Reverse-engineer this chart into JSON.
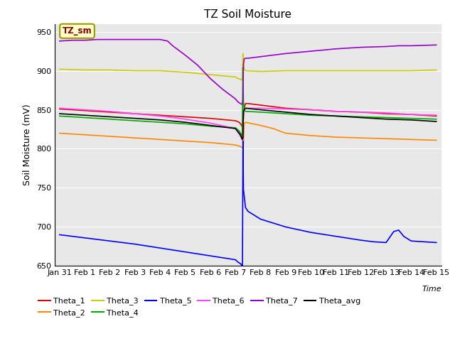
{
  "title": "TZ Soil Moisture",
  "xlabel": "Time",
  "ylabel": "Soil Moisture (mV)",
  "ylim": [
    650,
    960
  ],
  "yticks": [
    650,
    700,
    750,
    800,
    850,
    900,
    950
  ],
  "xlim": [
    -0.2,
    15.2
  ],
  "xtick_labels": [
    "Jan 31",
    "Feb 1",
    "Feb 2",
    "Feb 3",
    "Feb 4",
    "Feb 5",
    "Feb 6",
    "Feb 7",
    "Feb 8",
    "Feb 9",
    "Feb 10",
    "Feb 11",
    "Feb 12",
    "Feb 13",
    "Feb 14",
    "Feb 15"
  ],
  "background_color": "#e8e8e8",
  "label_box_color": "#ffffcc",
  "label_box_text": "TZ_sm",
  "label_box_text_color": "#880000",
  "series": {
    "Theta_1": {
      "color": "#dd0000",
      "points": [
        [
          0,
          851
        ],
        [
          1,
          849
        ],
        [
          2,
          847
        ],
        [
          3,
          845
        ],
        [
          4,
          843
        ],
        [
          5,
          841
        ],
        [
          6,
          839
        ],
        [
          7,
          836
        ],
        [
          7.15,
          834
        ],
        [
          7.2,
          832
        ],
        [
          7.25,
          830
        ],
        [
          7.27,
          828
        ],
        [
          7.3,
          830
        ],
        [
          7.32,
          842
        ],
        [
          7.35,
          852
        ],
        [
          7.4,
          858
        ],
        [
          7.5,
          858
        ],
        [
          8,
          856
        ],
        [
          9,
          852
        ],
        [
          10,
          850
        ],
        [
          11,
          848
        ],
        [
          12,
          847
        ],
        [
          13,
          845
        ],
        [
          14,
          844
        ],
        [
          15,
          842
        ]
      ]
    },
    "Theta_2": {
      "color": "#ff8800",
      "points": [
        [
          0,
          820
        ],
        [
          1,
          818
        ],
        [
          2,
          816
        ],
        [
          3,
          814
        ],
        [
          4,
          812
        ],
        [
          5,
          810
        ],
        [
          6,
          808
        ],
        [
          7,
          805
        ],
        [
          7.1,
          804
        ],
        [
          7.2,
          803
        ],
        [
          7.25,
          802
        ],
        [
          7.3,
          801
        ],
        [
          7.32,
          808
        ],
        [
          7.35,
          832
        ],
        [
          7.4,
          834
        ],
        [
          8,
          830
        ],
        [
          8.5,
          826
        ],
        [
          9,
          820
        ],
        [
          10,
          817
        ],
        [
          11,
          815
        ],
        [
          12,
          814
        ],
        [
          13,
          813
        ],
        [
          14,
          812
        ],
        [
          15,
          811
        ]
      ]
    },
    "Theta_3": {
      "color": "#cccc00",
      "points": [
        [
          0,
          902
        ],
        [
          1,
          901
        ],
        [
          2,
          901
        ],
        [
          3,
          900
        ],
        [
          4,
          900
        ],
        [
          5,
          898
        ],
        [
          6,
          895
        ],
        [
          7,
          892
        ],
        [
          7.1,
          890
        ],
        [
          7.2,
          889
        ],
        [
          7.25,
          888
        ],
        [
          7.27,
          889
        ],
        [
          7.3,
          922
        ],
        [
          7.32,
          910
        ],
        [
          7.35,
          902
        ],
        [
          7.4,
          900
        ],
        [
          8,
          899
        ],
        [
          9,
          900
        ],
        [
          10,
          900
        ],
        [
          11,
          900
        ],
        [
          12,
          900
        ],
        [
          13,
          900
        ],
        [
          14,
          900
        ],
        [
          15,
          901
        ]
      ]
    },
    "Theta_4": {
      "color": "#00aa00",
      "points": [
        [
          0,
          842
        ],
        [
          1,
          840
        ],
        [
          2,
          838
        ],
        [
          3,
          836
        ],
        [
          4,
          834
        ],
        [
          5,
          832
        ],
        [
          6,
          829
        ],
        [
          7,
          827
        ],
        [
          7.15,
          823
        ],
        [
          7.2,
          820
        ],
        [
          7.25,
          818
        ],
        [
          7.27,
          815
        ],
        [
          7.3,
          904
        ],
        [
          7.32,
          860
        ],
        [
          7.35,
          850
        ],
        [
          7.4,
          848
        ],
        [
          8,
          847
        ],
        [
          9,
          845
        ],
        [
          10,
          843
        ],
        [
          11,
          842
        ],
        [
          12,
          841
        ],
        [
          13,
          840
        ],
        [
          14,
          839
        ],
        [
          15,
          838
        ]
      ]
    },
    "Theta_5": {
      "color": "#0000ff",
      "points": [
        [
          0,
          690
        ],
        [
          1,
          686
        ],
        [
          2,
          682
        ],
        [
          3,
          678
        ],
        [
          4,
          673
        ],
        [
          5,
          668
        ],
        [
          6,
          663
        ],
        [
          7,
          658
        ],
        [
          7.1,
          655
        ],
        [
          7.2,
          653
        ],
        [
          7.25,
          651
        ],
        [
          7.28,
          648
        ],
        [
          7.3,
          810
        ],
        [
          7.32,
          748
        ],
        [
          7.35,
          740
        ],
        [
          7.4,
          725
        ],
        [
          7.5,
          720
        ],
        [
          8,
          710
        ],
        [
          9,
          700
        ],
        [
          10,
          693
        ],
        [
          11,
          688
        ],
        [
          12,
          683
        ],
        [
          12.5,
          681
        ],
        [
          13,
          680
        ],
        [
          13.3,
          694
        ],
        [
          13.5,
          696
        ],
        [
          13.7,
          688
        ],
        [
          14,
          682
        ],
        [
          14.5,
          681
        ],
        [
          15,
          680
        ]
      ]
    },
    "Theta_6": {
      "color": "#ff44ff",
      "points": [
        [
          0,
          852
        ],
        [
          1,
          850
        ],
        [
          2,
          848
        ],
        [
          3,
          845
        ],
        [
          4,
          842
        ],
        [
          5,
          838
        ],
        [
          6,
          833
        ],
        [
          7,
          826
        ],
        [
          7.1,
          821
        ],
        [
          7.2,
          816
        ],
        [
          7.25,
          813
        ],
        [
          7.28,
          811
        ],
        [
          7.3,
          813
        ],
        [
          7.32,
          842
        ],
        [
          7.35,
          850
        ],
        [
          7.4,
          852
        ],
        [
          8,
          852
        ],
        [
          9,
          851
        ],
        [
          10,
          850
        ],
        [
          11,
          848
        ],
        [
          12,
          847
        ],
        [
          13,
          846
        ],
        [
          14,
          844
        ],
        [
          15,
          843
        ]
      ]
    },
    "Theta_7": {
      "color": "#9900cc",
      "points": [
        [
          0,
          938
        ],
        [
          0.5,
          939
        ],
        [
          1,
          939
        ],
        [
          1.5,
          940
        ],
        [
          2,
          940
        ],
        [
          2.5,
          940
        ],
        [
          3,
          940
        ],
        [
          3.5,
          940
        ],
        [
          4,
          940
        ],
        [
          4.3,
          938
        ],
        [
          4.5,
          932
        ],
        [
          5,
          920
        ],
        [
          5.5,
          907
        ],
        [
          6,
          890
        ],
        [
          6.5,
          876
        ],
        [
          7,
          864
        ],
        [
          7.1,
          860
        ],
        [
          7.2,
          858
        ],
        [
          7.25,
          857
        ],
        [
          7.28,
          858
        ],
        [
          7.3,
          862
        ],
        [
          7.32,
          908
        ],
        [
          7.35,
          915
        ],
        [
          7.4,
          916
        ],
        [
          7.5,
          916
        ],
        [
          8,
          918
        ],
        [
          9,
          922
        ],
        [
          10,
          925
        ],
        [
          11,
          928
        ],
        [
          12,
          930
        ],
        [
          13,
          931
        ],
        [
          13.5,
          932
        ],
        [
          14,
          932
        ],
        [
          15,
          933
        ]
      ]
    },
    "Theta_avg": {
      "color": "#000000",
      "points": [
        [
          0,
          845
        ],
        [
          1,
          843
        ],
        [
          2,
          841
        ],
        [
          3,
          839
        ],
        [
          4,
          837
        ],
        [
          5,
          834
        ],
        [
          6,
          830
        ],
        [
          7,
          826
        ],
        [
          7.1,
          822
        ],
        [
          7.2,
          818
        ],
        [
          7.25,
          814
        ],
        [
          7.27,
          812
        ],
        [
          7.3,
          814
        ],
        [
          7.32,
          848
        ],
        [
          7.35,
          850
        ],
        [
          7.4,
          852
        ],
        [
          8,
          850
        ],
        [
          9,
          847
        ],
        [
          10,
          844
        ],
        [
          11,
          842
        ],
        [
          12,
          840
        ],
        [
          13,
          838
        ],
        [
          14,
          837
        ],
        [
          15,
          835
        ]
      ]
    }
  },
  "legend_order": [
    "Theta_1",
    "Theta_2",
    "Theta_3",
    "Theta_4",
    "Theta_5",
    "Theta_6",
    "Theta_7",
    "Theta_avg"
  ]
}
